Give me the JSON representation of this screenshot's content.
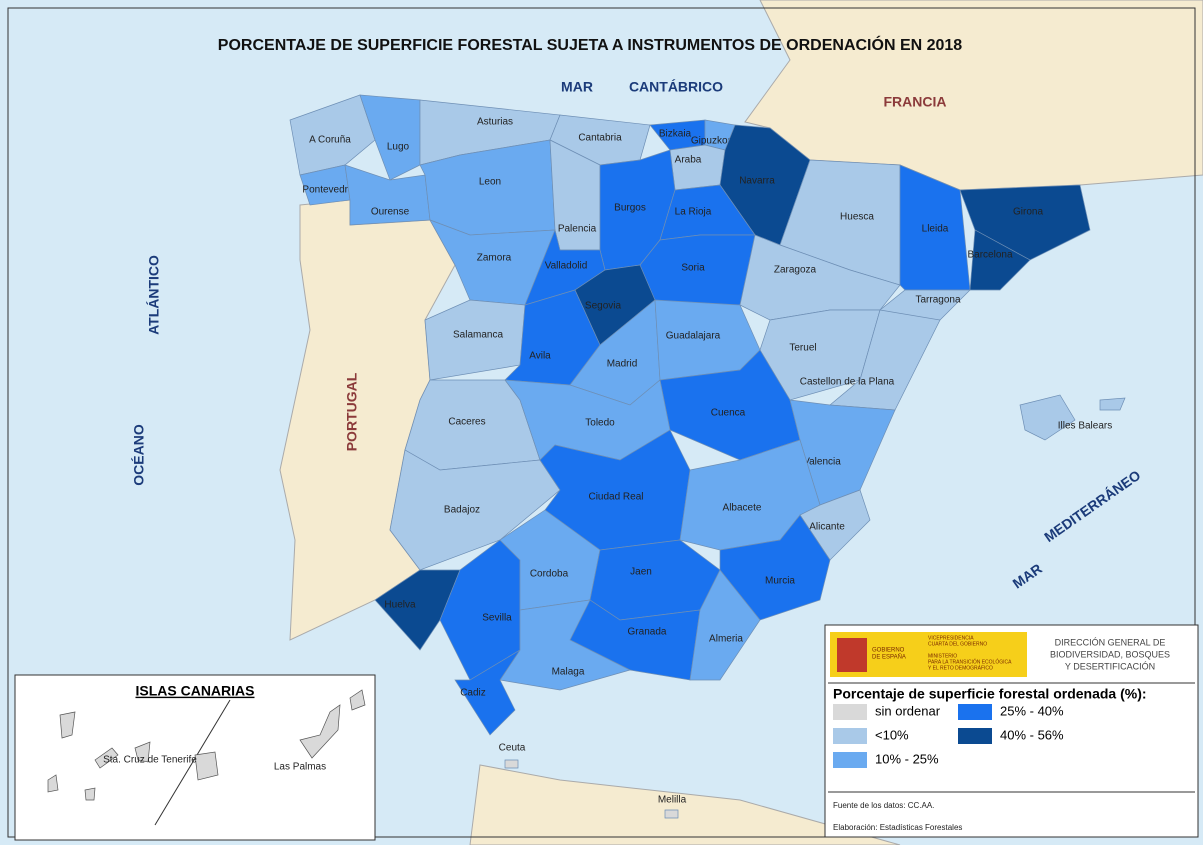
{
  "title": "PORCENTAJE DE SUPERFICIE FORESTAL SUJETA A INSTRUMENTOS DE ORDENACIÓN EN 2018",
  "seas": [
    "MAR",
    "CANTÁBRICO",
    "ATLÁNTICO",
    "OCÉANO",
    "MAR",
    "MEDITERRÁNEO"
  ],
  "countries": [
    "FRANCIA",
    "PORTUGAL"
  ],
  "legend": {
    "title": "Porcentaje de superficie forestal ordenada (%):",
    "classes": [
      {
        "label": "sin ordenar",
        "color": "#d9d9d9"
      },
      {
        "label": "<10%",
        "color": "#a9c9e8"
      },
      {
        "label": "10% - 25%",
        "color": "#6aaaf0"
      },
      {
        "label": "25% - 40%",
        "color": "#1a72ee"
      },
      {
        "label": "40% - 56%",
        "color": "#0b4a91"
      }
    ]
  },
  "provinces": [
    {
      "name": "A Coruña",
      "class": 1
    },
    {
      "name": "Lugo",
      "class": 2
    },
    {
      "name": "Pontevedra",
      "class": 2
    },
    {
      "name": "Ourense",
      "class": 2
    },
    {
      "name": "Asturias",
      "class": 1
    },
    {
      "name": "Cantabria",
      "class": 1
    },
    {
      "name": "Bizkaia",
      "class": 3
    },
    {
      "name": "Gipuzkoa",
      "class": 2
    },
    {
      "name": "Araba",
      "class": 1
    },
    {
      "name": "Navarra",
      "class": 4
    },
    {
      "name": "Leon",
      "class": 2
    },
    {
      "name": "Palencia",
      "class": 1
    },
    {
      "name": "Burgos",
      "class": 3
    },
    {
      "name": "La Rioja",
      "class": 3
    },
    {
      "name": "Zamora",
      "class": 2
    },
    {
      "name": "Valladolid",
      "class": 3
    },
    {
      "name": "Soria",
      "class": 3
    },
    {
      "name": "Segovia",
      "class": 4
    },
    {
      "name": "Salamanca",
      "class": 1
    },
    {
      "name": "Avila",
      "class": 3
    },
    {
      "name": "Madrid",
      "class": 2
    },
    {
      "name": "Guadalajara",
      "class": 2
    },
    {
      "name": "Huesca",
      "class": 1
    },
    {
      "name": "Zaragoza",
      "class": 1
    },
    {
      "name": "Lleida",
      "class": 3
    },
    {
      "name": "Girona",
      "class": 4
    },
    {
      "name": "Barcelona",
      "class": 4
    },
    {
      "name": "Tarragona",
      "class": 1
    },
    {
      "name": "Teruel",
      "class": 1
    },
    {
      "name": "Castellon de la Plana",
      "class": 1
    },
    {
      "name": "Cuenca",
      "class": 3
    },
    {
      "name": "Caceres",
      "class": 1
    },
    {
      "name": "Toledo",
      "class": 2
    },
    {
      "name": "Valencia",
      "class": 2
    },
    {
      "name": "Badajoz",
      "class": 1
    },
    {
      "name": "Ciudad Real",
      "class": 3
    },
    {
      "name": "Albacete",
      "class": 2
    },
    {
      "name": "Alicante",
      "class": 1
    },
    {
      "name": "Huelva",
      "class": 4
    },
    {
      "name": "Sevilla",
      "class": 3
    },
    {
      "name": "Cordoba",
      "class": 2
    },
    {
      "name": "Jaen",
      "class": 3
    },
    {
      "name": "Granada",
      "class": 3
    },
    {
      "name": "Murcia",
      "class": 3
    },
    {
      "name": "Almeria",
      "class": 2
    },
    {
      "name": "Malaga",
      "class": 2
    },
    {
      "name": "Cadiz",
      "class": 3
    },
    {
      "name": "Illes Balears",
      "class": 1
    },
    {
      "name": "Ceuta",
      "class": 0
    },
    {
      "name": "Melilla",
      "class": 0
    }
  ],
  "inset": {
    "title": "ISLAS CANARIAS",
    "labels": [
      "Sta. Cruz de Tenerife",
      "Las Palmas"
    ],
    "class": 0
  },
  "logo": {
    "left": [
      "GOBIERNO",
      "DE ESPAÑA"
    ],
    "right": [
      "VICEPRESIDENCIA",
      "CUARTA DEL GOBIERNO",
      "MINISTERIO",
      "PARA LA TRANSICIÓN ECOLÓGICA",
      "Y EL RETO DEMOGRÁFICO"
    ],
    "agency": [
      "DIRECCIÓN GENERAL DE",
      "BIODIVERSIDAD, BOSQUES",
      "Y DESERTIFICACIÓN"
    ]
  },
  "source": "Fuente de los datos: CC.AA.",
  "credit": "Elaboración: Estadísticas Forestales"
}
